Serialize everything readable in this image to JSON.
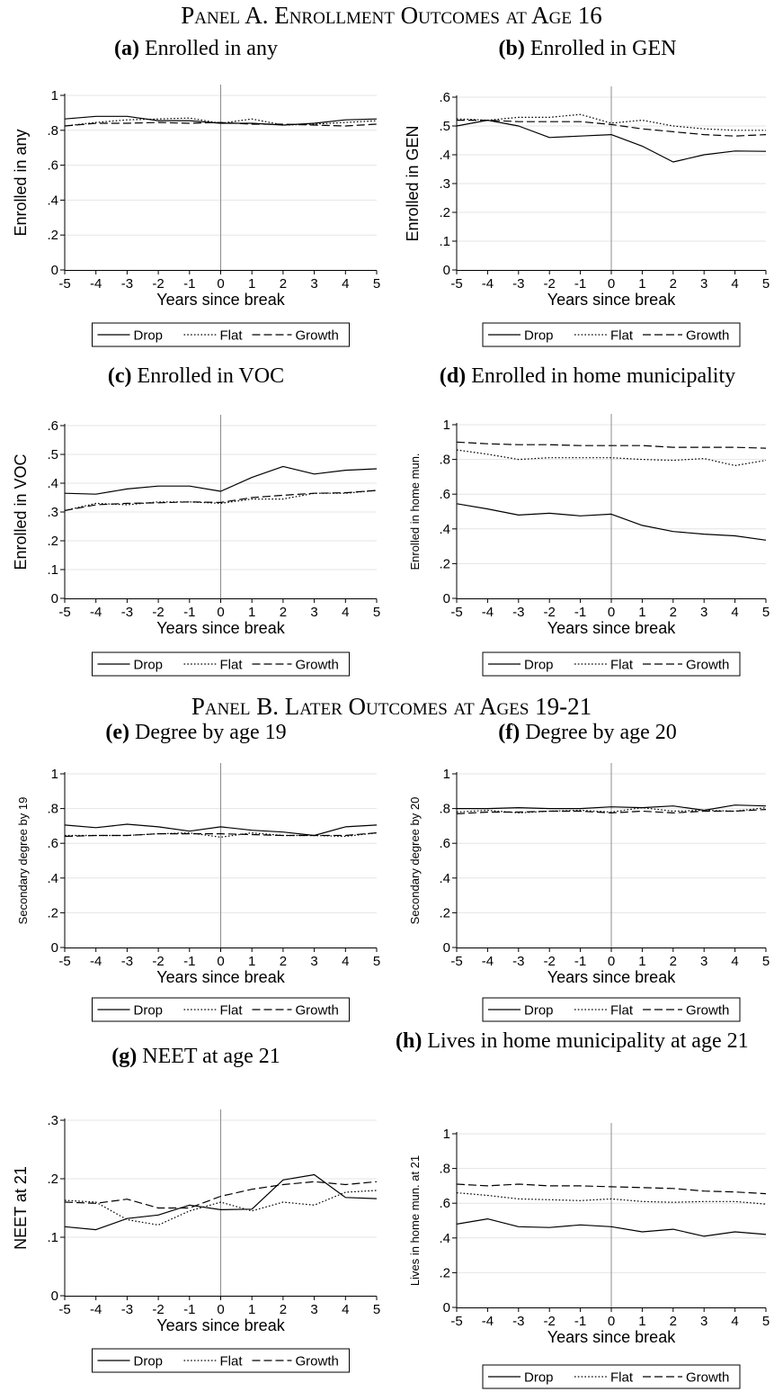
{
  "panels": {
    "a": "Panel A. Enrollment Outcomes at Age 16",
    "b": "Panel B. Later Outcomes at Ages 19-21"
  },
  "legend": {
    "drop": "Drop",
    "flat": "Flat",
    "growth": "Growth"
  },
  "colors": {
    "line": "#000000",
    "vline": "#8c8c8c",
    "grid": "#e4e4e4"
  },
  "chart_data": [
    {
      "id": "a",
      "type": "line",
      "letter": "(a)",
      "subtitle": "Enrolled in any",
      "xlabel": "Years since break",
      "ylabel": "Enrolled in any",
      "x": [
        -5,
        -4,
        -3,
        -2,
        -1,
        0,
        1,
        2,
        3,
        4,
        5
      ],
      "ylim": [
        0,
        1
      ],
      "yticks": [
        "0",
        ".2",
        ".4",
        ".6",
        ".8",
        "1"
      ],
      "ytick_values": [
        0,
        0.2,
        0.4,
        0.6,
        0.8,
        1
      ],
      "series": [
        {
          "name": "Drop",
          "values": [
            0.865,
            0.88,
            0.88,
            0.855,
            0.855,
            0.84,
            0.84,
            0.83,
            0.84,
            0.86,
            0.865
          ]
        },
        {
          "name": "Flat",
          "values": [
            0.825,
            0.845,
            0.86,
            0.865,
            0.87,
            0.84,
            0.865,
            0.83,
            0.835,
            0.845,
            0.855
          ]
        },
        {
          "name": "Growth",
          "values": [
            0.825,
            0.84,
            0.84,
            0.845,
            0.84,
            0.845,
            0.835,
            0.835,
            0.83,
            0.825,
            0.835
          ]
        }
      ]
    },
    {
      "id": "b",
      "type": "line",
      "letter": "(b)",
      "subtitle": "Enrolled in GEN",
      "xlabel": "Years since break",
      "ylabel": "Enrolled in GEN",
      "x": [
        -5,
        -4,
        -3,
        -2,
        -1,
        0,
        1,
        2,
        3,
        4,
        5
      ],
      "ylim": [
        0,
        0.6
      ],
      "yticks": [
        "0",
        ".1",
        ".2",
        ".3",
        ".4",
        ".5",
        ".6"
      ],
      "ytick_values": [
        0,
        0.1,
        0.2,
        0.3,
        0.4,
        0.5,
        0.6
      ],
      "series": [
        {
          "name": "Drop",
          "values": [
            0.5,
            0.52,
            0.5,
            0.46,
            0.465,
            0.47,
            0.43,
            0.375,
            0.4,
            0.413,
            0.412
          ]
        },
        {
          "name": "Flat",
          "values": [
            0.525,
            0.52,
            0.53,
            0.53,
            0.54,
            0.51,
            0.52,
            0.5,
            0.49,
            0.485,
            0.485
          ]
        },
        {
          "name": "Growth",
          "values": [
            0.52,
            0.52,
            0.515,
            0.515,
            0.515,
            0.505,
            0.49,
            0.48,
            0.47,
            0.465,
            0.47
          ]
        }
      ]
    },
    {
      "id": "c",
      "type": "line",
      "letter": "(c)",
      "subtitle": "Enrolled in VOC",
      "xlabel": "Years since break",
      "ylabel": "Enrolled in VOC",
      "x": [
        -5,
        -4,
        -3,
        -2,
        -1,
        0,
        1,
        2,
        3,
        4,
        5
      ],
      "ylim": [
        0,
        0.6
      ],
      "yticks": [
        "0",
        ".1",
        ".2",
        ".3",
        ".4",
        ".5",
        ".6"
      ],
      "ytick_values": [
        0,
        0.1,
        0.2,
        0.3,
        0.4,
        0.5,
        0.6
      ],
      "series": [
        {
          "name": "Drop",
          "values": [
            0.365,
            0.362,
            0.38,
            0.39,
            0.39,
            0.372,
            0.42,
            0.458,
            0.432,
            0.445,
            0.45
          ]
        },
        {
          "name": "Flat",
          "values": [
            0.305,
            0.33,
            0.325,
            0.335,
            0.335,
            0.33,
            0.345,
            0.345,
            0.365,
            0.365,
            0.375
          ]
        },
        {
          "name": "Growth",
          "values": [
            0.305,
            0.325,
            0.33,
            0.332,
            0.335,
            0.333,
            0.35,
            0.358,
            0.365,
            0.367,
            0.375
          ]
        }
      ]
    },
    {
      "id": "d",
      "type": "line",
      "letter": "(d)",
      "subtitle": "Enrolled in home municipality",
      "xlabel": "Years since break",
      "ylabel": "Enrolled in home mun.",
      "x": [
        -5,
        -4,
        -3,
        -2,
        -1,
        0,
        1,
        2,
        3,
        4,
        5
      ],
      "ylim": [
        0,
        1
      ],
      "yticks": [
        "0",
        ".2",
        ".4",
        ".6",
        ".8",
        "1"
      ],
      "ytick_values": [
        0,
        0.2,
        0.4,
        0.6,
        0.8,
        1
      ],
      "series": [
        {
          "name": "Drop",
          "values": [
            0.545,
            0.515,
            0.48,
            0.49,
            0.475,
            0.485,
            0.42,
            0.385,
            0.37,
            0.36,
            0.335
          ]
        },
        {
          "name": "Flat",
          "values": [
            0.855,
            0.83,
            0.8,
            0.81,
            0.81,
            0.81,
            0.8,
            0.795,
            0.805,
            0.765,
            0.795
          ]
        },
        {
          "name": "Growth",
          "values": [
            0.9,
            0.89,
            0.885,
            0.885,
            0.88,
            0.88,
            0.88,
            0.87,
            0.87,
            0.87,
            0.865
          ]
        }
      ]
    },
    {
      "id": "e",
      "type": "line",
      "letter": "(e)",
      "subtitle": "Degree by age 19",
      "xlabel": "Years since break",
      "ylabel": "Secondary degree by 19",
      "x": [
        -5,
        -4,
        -3,
        -2,
        -1,
        0,
        1,
        2,
        3,
        4,
        5
      ],
      "ylim": [
        0,
        1
      ],
      "yticks": [
        "0",
        ".2",
        ".4",
        ".6",
        ".8",
        "1"
      ],
      "ytick_values": [
        0,
        0.2,
        0.4,
        0.6,
        0.8,
        1
      ],
      "series": [
        {
          "name": "Drop",
          "values": [
            0.705,
            0.69,
            0.71,
            0.695,
            0.67,
            0.695,
            0.675,
            0.665,
            0.645,
            0.695,
            0.705
          ]
        },
        {
          "name": "Flat",
          "values": [
            0.645,
            0.645,
            0.645,
            0.655,
            0.66,
            0.635,
            0.66,
            0.645,
            0.645,
            0.64,
            0.66
          ]
        },
        {
          "name": "Growth",
          "values": [
            0.64,
            0.645,
            0.645,
            0.655,
            0.655,
            0.655,
            0.65,
            0.645,
            0.645,
            0.645,
            0.66
          ]
        }
      ]
    },
    {
      "id": "f",
      "type": "line",
      "letter": "(f)",
      "subtitle": "Degree by age 20",
      "xlabel": "Years since break",
      "ylabel": "Secondary degree by 20",
      "x": [
        -5,
        -4,
        -3,
        -2,
        -1,
        0,
        1,
        2,
        3,
        4,
        5
      ],
      "ylim": [
        0,
        1
      ],
      "yticks": [
        "0",
        ".2",
        ".4",
        ".6",
        ".8",
        "1"
      ],
      "ytick_values": [
        0,
        0.2,
        0.4,
        0.6,
        0.8,
        1
      ],
      "series": [
        {
          "name": "Drop",
          "values": [
            0.8,
            0.8,
            0.805,
            0.8,
            0.8,
            0.81,
            0.805,
            0.815,
            0.79,
            0.82,
            0.815
          ]
        },
        {
          "name": "Flat",
          "values": [
            0.78,
            0.79,
            0.775,
            0.785,
            0.79,
            0.78,
            0.805,
            0.785,
            0.79,
            0.785,
            0.805
          ]
        },
        {
          "name": "Growth",
          "values": [
            0.77,
            0.78,
            0.78,
            0.785,
            0.785,
            0.775,
            0.785,
            0.775,
            0.785,
            0.785,
            0.795
          ]
        }
      ]
    },
    {
      "id": "g",
      "type": "line",
      "letter": "(g)",
      "subtitle": "NEET at age 21",
      "xlabel": "Years since break",
      "ylabel": "NEET at 21",
      "x": [
        -5,
        -4,
        -3,
        -2,
        -1,
        0,
        1,
        2,
        3,
        4,
        5
      ],
      "ylim": [
        0,
        0.3
      ],
      "yticks": [
        "0",
        ".1",
        ".2",
        ".3"
      ],
      "ytick_values": [
        0,
        0.1,
        0.2,
        0.3
      ],
      "series": [
        {
          "name": "Drop",
          "values": [
            0.118,
            0.113,
            0.132,
            0.138,
            0.155,
            0.147,
            0.148,
            0.198,
            0.207,
            0.168,
            0.166
          ]
        },
        {
          "name": "Flat",
          "values": [
            0.163,
            0.16,
            0.13,
            0.121,
            0.145,
            0.16,
            0.145,
            0.16,
            0.155,
            0.177,
            0.18
          ]
        },
        {
          "name": "Growth",
          "values": [
            0.16,
            0.158,
            0.165,
            0.15,
            0.15,
            0.17,
            0.182,
            0.19,
            0.195,
            0.19,
            0.195
          ]
        }
      ]
    },
    {
      "id": "h",
      "type": "line",
      "letter": "(h)",
      "subtitle": "Lives in home municipality at age 21",
      "xlabel": "Years since break",
      "ylabel": "Lives in home mun. at 21",
      "x": [
        -5,
        -4,
        -3,
        -2,
        -1,
        0,
        1,
        2,
        3,
        4,
        5
      ],
      "ylim": [
        0,
        1
      ],
      "yticks": [
        "0",
        ".2",
        ".4",
        ".6",
        ".8",
        "1"
      ],
      "ytick_values": [
        0,
        0.2,
        0.4,
        0.6,
        0.8,
        1
      ],
      "series": [
        {
          "name": "Drop",
          "values": [
            0.48,
            0.51,
            0.465,
            0.46,
            0.475,
            0.465,
            0.435,
            0.45,
            0.41,
            0.435,
            0.42
          ]
        },
        {
          "name": "Flat",
          "values": [
            0.66,
            0.645,
            0.625,
            0.62,
            0.615,
            0.625,
            0.61,
            0.605,
            0.61,
            0.61,
            0.595
          ]
        },
        {
          "name": "Growth",
          "values": [
            0.71,
            0.7,
            0.71,
            0.7,
            0.7,
            0.695,
            0.69,
            0.685,
            0.67,
            0.665,
            0.655
          ]
        }
      ]
    }
  ]
}
